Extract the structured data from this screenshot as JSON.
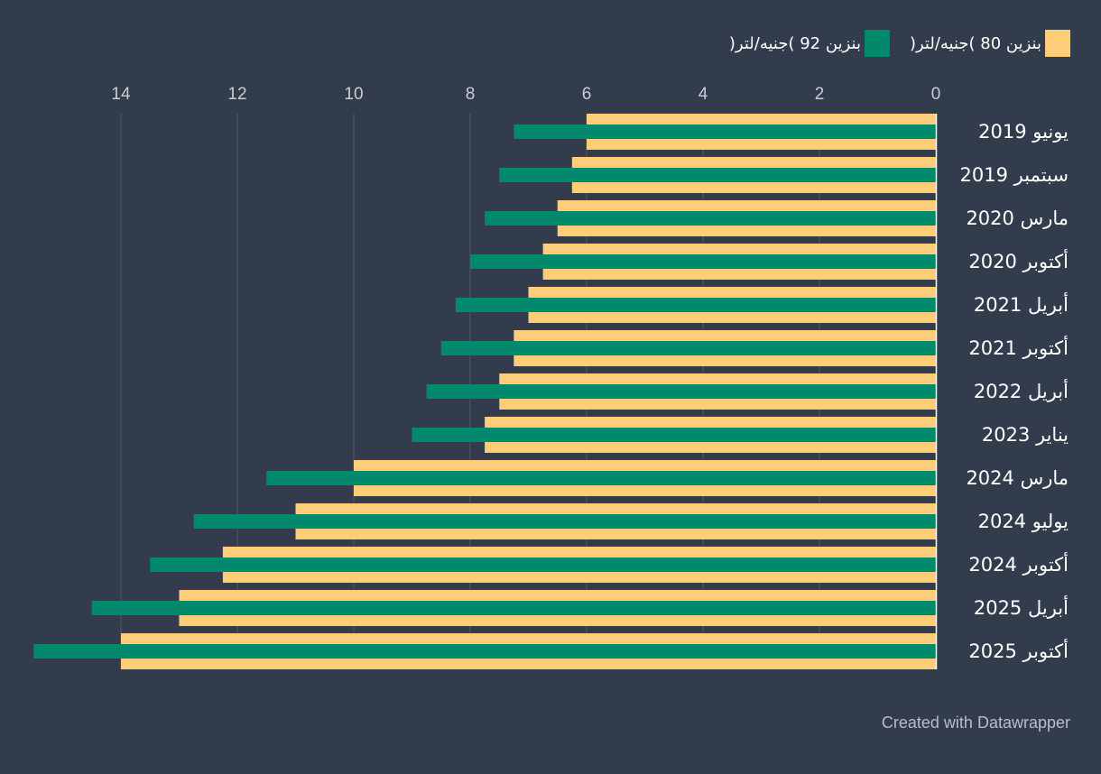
{
  "legend": {
    "items": [
      {
        "label": "بنزين 80 )جنيه/لتر(",
        "color": "#ffcc7a"
      },
      {
        "label": "بنزين 92 )جنيه/لتر(",
        "color": "#00896b"
      }
    ]
  },
  "chart_data": {
    "type": "bar",
    "orientation": "horizontal",
    "direction": "right-to-left",
    "categories": [
      "يونيو 2019",
      "سبتمبر 2019",
      "مارس 2020",
      "أكتوبر 2020",
      "أبريل 2021",
      "أكتوبر 2021",
      "أبريل 2022",
      "يناير 2023",
      "مارس 2024",
      "يوليو 2024",
      "أكتوبر 2024",
      "أبريل 2025",
      "أكتوبر 2025"
    ],
    "series": [
      {
        "name": "بنزين 80 )جنيه/لتر(",
        "values": [
          6.0,
          6.25,
          6.5,
          6.75,
          7.0,
          7.25,
          7.5,
          7.75,
          10.0,
          11.0,
          12.25,
          13.0,
          14.0
        ]
      },
      {
        "name": "بنزين 92 )جنيه/لتر(",
        "values": [
          7.25,
          7.5,
          7.75,
          8.0,
          8.25,
          8.5,
          8.75,
          9.0,
          11.5,
          12.75,
          13.5,
          14.5,
          15.5
        ]
      }
    ],
    "xlim": [
      0,
      15.5
    ],
    "xticks": [
      0,
      2,
      4,
      6,
      8,
      10,
      12,
      14
    ],
    "grid": true,
    "legend_position": "top-right"
  },
  "footer": {
    "credit": "Created with Datawrapper"
  }
}
